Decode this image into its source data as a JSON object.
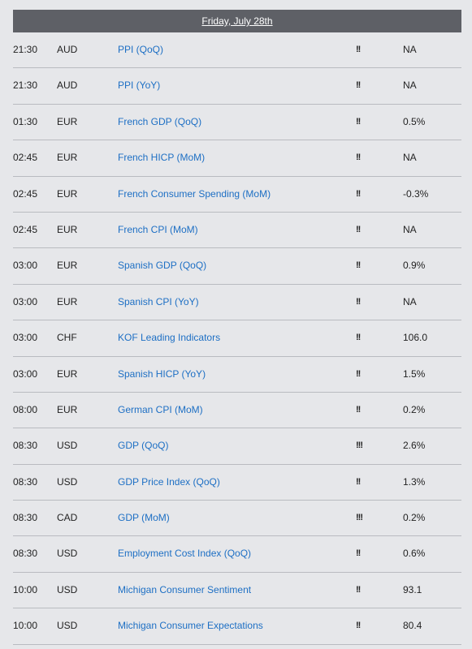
{
  "header": {
    "date": "Friday, July 28th"
  },
  "events": [
    {
      "time": "21:30",
      "currency": "AUD",
      "event": "PPI (QoQ)",
      "importance": "!!",
      "value": "NA"
    },
    {
      "time": "21:30",
      "currency": "AUD",
      "event": "PPI (YoY)",
      "importance": "!!",
      "value": "NA"
    },
    {
      "time": "01:30",
      "currency": "EUR",
      "event": "French GDP (QoQ)",
      "importance": "!!",
      "value": "0.5%"
    },
    {
      "time": "02:45",
      "currency": "EUR",
      "event": "French HICP (MoM)",
      "importance": "!!",
      "value": "NA"
    },
    {
      "time": "02:45",
      "currency": "EUR",
      "event": "French Consumer Spending (MoM)",
      "importance": "!!",
      "value": "-0.3%"
    },
    {
      "time": "02:45",
      "currency": "EUR",
      "event": "French CPI (MoM)",
      "importance": "!!",
      "value": "NA"
    },
    {
      "time": "03:00",
      "currency": "EUR",
      "event": "Spanish GDP (QoQ)",
      "importance": "!!",
      "value": "0.9%"
    },
    {
      "time": "03:00",
      "currency": "EUR",
      "event": "Spanish CPI (YoY)",
      "importance": "!!",
      "value": "NA"
    },
    {
      "time": "03:00",
      "currency": "CHF",
      "event": "KOF Leading Indicators",
      "importance": "!!",
      "value": "106.0"
    },
    {
      "time": "03:00",
      "currency": "EUR",
      "event": "Spanish HICP (YoY)",
      "importance": "!!",
      "value": "1.5%"
    },
    {
      "time": "08:00",
      "currency": "EUR",
      "event": "German CPI (MoM)",
      "importance": "!!",
      "value": "0.2%"
    },
    {
      "time": "08:30",
      "currency": "USD",
      "event": "GDP (QoQ)",
      "importance": "!!!",
      "value": "2.6%"
    },
    {
      "time": "08:30",
      "currency": "USD",
      "event": "GDP Price Index (QoQ)",
      "importance": "!!",
      "value": "1.3%"
    },
    {
      "time": "08:30",
      "currency": "CAD",
      "event": "GDP (MoM)",
      "importance": "!!!",
      "value": "0.2%"
    },
    {
      "time": "08:30",
      "currency": "USD",
      "event": "Employment Cost Index (QoQ)",
      "importance": "!!",
      "value": "0.6%"
    },
    {
      "time": "10:00",
      "currency": "USD",
      "event": "Michigan Consumer Sentiment",
      "importance": "!!",
      "value": "93.1"
    },
    {
      "time": "10:00",
      "currency": "USD",
      "event": "Michigan Consumer Expectations",
      "importance": "!!",
      "value": "80.4"
    }
  ]
}
